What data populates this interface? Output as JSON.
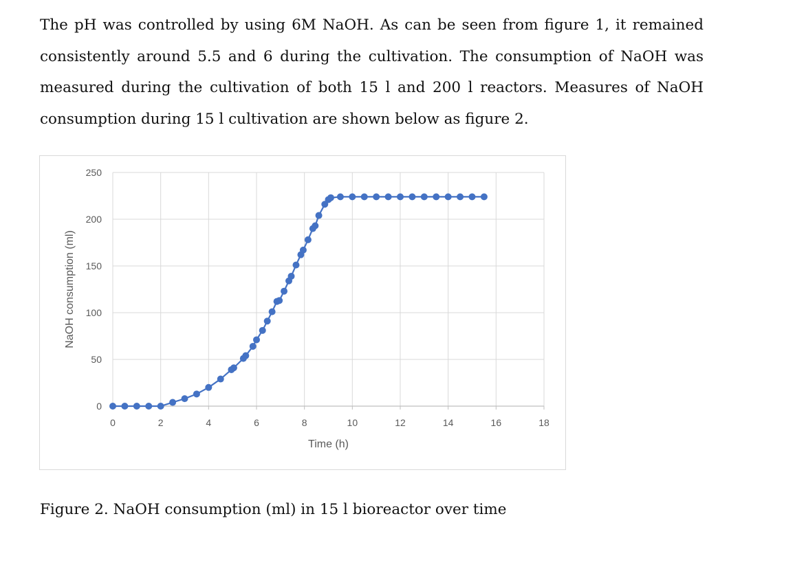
{
  "paragraph": {
    "lines": [
      "The pH was controlled by using 6M NaOH. As can be seen from figure 1, it remained",
      "consistently around 5.5 and 6 during the cultivation. The consumption of NaOH was",
      "measured during the cultivation of both 15 l and 200 l reactors. Measures of NaOH",
      "consumption during 15 l cultivation are shown below as figure 2."
    ]
  },
  "caption": "Figure 2. NaOH consumption (ml) in 15 l bioreactor over time",
  "colors": {
    "series": "#4472c4",
    "grid": "#d9d9d9",
    "axis": "#bfbfbf",
    "tick_text": "#595959"
  },
  "chart_data": {
    "type": "scatter",
    "title": "",
    "xlabel": "Time (h)",
    "ylabel": "NaOH consumption (ml)",
    "xlim": [
      0,
      18
    ],
    "ylim": [
      0,
      250
    ],
    "xticks": [
      0,
      2,
      4,
      6,
      8,
      10,
      12,
      14,
      16,
      18
    ],
    "yticks": [
      0,
      50,
      100,
      150,
      200,
      250
    ],
    "grid": true,
    "legend": "none",
    "markers_with_lines": true,
    "series": [
      {
        "x": [
          0,
          0.5,
          1,
          1.5,
          2,
          2.5,
          3,
          3.5,
          4,
          4.5,
          4.95,
          5.05,
          5.45,
          5.55,
          5.85,
          6,
          6.25,
          6.45,
          6.65,
          6.85,
          6.95,
          7.15,
          7.35,
          7.45,
          7.65,
          7.85,
          7.95,
          8.15,
          8.35,
          8.45,
          8.6,
          8.85,
          9.0,
          9.1,
          9.5,
          10.0,
          10.5,
          11.0,
          11.5,
          12.0,
          12.5,
          13.0,
          13.5,
          14.0,
          14.5,
          15.0,
          15.5
        ],
        "y": [
          0,
          0,
          0,
          0,
          0,
          4,
          8,
          13,
          20,
          29,
          39,
          41,
          51,
          54,
          64,
          71,
          81,
          91,
          101,
          112,
          113,
          123,
          134,
          139,
          151,
          162,
          167,
          178,
          190,
          193,
          204,
          216,
          221,
          223,
          224,
          224,
          224,
          224,
          224,
          224,
          224,
          224,
          224,
          224,
          224,
          224,
          224
        ]
      }
    ]
  }
}
